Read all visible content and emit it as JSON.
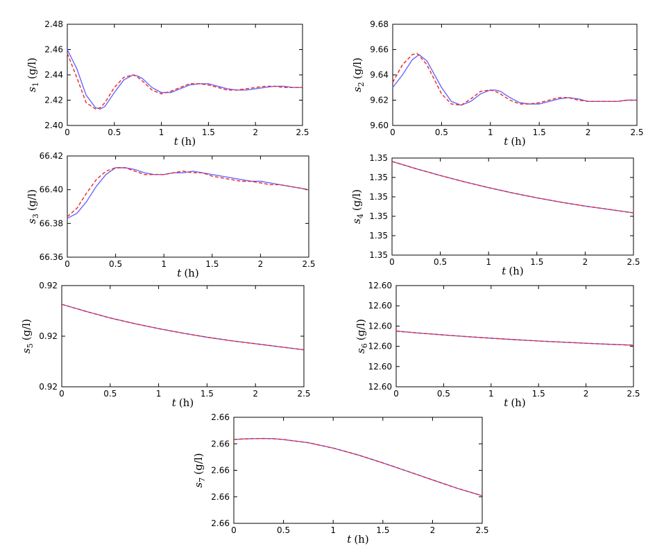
{
  "colors": {
    "series_a": "#6666ff",
    "series_b": "#ee2222"
  },
  "chart_data": [
    {
      "type": "line",
      "ylabel": "s1 (g/l)",
      "ylabel_var": "s",
      "ylabel_sub": "1",
      "ylabel_unit": "(g/l)",
      "xlabel": "t (h)",
      "xlim": [
        0,
        2.5
      ],
      "ylim": [
        2.4,
        2.48
      ],
      "xticks": [
        "0",
        "0.5",
        "1",
        "1.5",
        "2",
        "2.5"
      ],
      "yticks": [
        "2.40",
        "2.42",
        "2.44",
        "2.46",
        "2.48"
      ],
      "series": [
        {
          "style": "solid",
          "color": "#6666ff",
          "x": [
            0,
            0.1,
            0.2,
            0.3,
            0.35,
            0.4,
            0.5,
            0.6,
            0.7,
            0.75,
            0.8,
            0.9,
            1.0,
            1.1,
            1.2,
            1.3,
            1.4,
            1.5,
            1.6,
            1.7,
            1.8,
            1.9,
            2.0,
            2.1,
            2.2,
            2.3,
            2.4,
            2.5
          ],
          "y": [
            2.46,
            2.445,
            2.424,
            2.414,
            2.413,
            2.415,
            2.426,
            2.436,
            2.44,
            2.439,
            2.437,
            2.43,
            2.426,
            2.426,
            2.429,
            2.432,
            2.433,
            2.433,
            2.431,
            2.429,
            2.428,
            2.428,
            2.429,
            2.43,
            2.431,
            2.431,
            2.43,
            2.43
          ]
        },
        {
          "style": "dashed",
          "color": "#ee2222",
          "x": [
            0,
            0.1,
            0.2,
            0.3,
            0.35,
            0.4,
            0.5,
            0.6,
            0.7,
            0.75,
            0.8,
            0.9,
            1.0,
            1.1,
            1.2,
            1.3,
            1.4,
            1.5,
            1.6,
            1.7,
            1.8,
            1.9,
            2.0,
            2.1,
            2.2,
            2.3,
            2.4,
            2.5
          ],
          "y": [
            2.457,
            2.438,
            2.418,
            2.413,
            2.414,
            2.418,
            2.43,
            2.438,
            2.44,
            2.438,
            2.435,
            2.428,
            2.425,
            2.427,
            2.43,
            2.433,
            2.433,
            2.432,
            2.43,
            2.428,
            2.428,
            2.429,
            2.43,
            2.431,
            2.431,
            2.43,
            2.43,
            2.43
          ]
        }
      ]
    },
    {
      "type": "line",
      "ylabel": "s2 (g/l)",
      "ylabel_var": "s",
      "ylabel_sub": "2",
      "ylabel_unit": "(g/l)",
      "xlabel": "t (h)",
      "xlim": [
        0,
        2.5
      ],
      "ylim": [
        9.6,
        9.68
      ],
      "xticks": [
        "0",
        "0.5",
        "1",
        "1.5",
        "2",
        "2.5"
      ],
      "yticks": [
        "9.60",
        "9.62",
        "9.64",
        "9.66",
        "9.68"
      ],
      "series": [
        {
          "style": "solid",
          "color": "#6666ff",
          "x": [
            0,
            0.1,
            0.2,
            0.27,
            0.35,
            0.5,
            0.6,
            0.7,
            0.8,
            0.9,
            1.0,
            1.05,
            1.1,
            1.2,
            1.3,
            1.4,
            1.5,
            1.6,
            1.7,
            1.8,
            1.9,
            2.0,
            2.1,
            2.2,
            2.3,
            2.4,
            2.5
          ],
          "y": [
            9.63,
            9.64,
            9.652,
            9.656,
            9.651,
            9.63,
            9.619,
            9.616,
            9.619,
            9.625,
            9.628,
            9.628,
            9.627,
            9.622,
            9.618,
            9.617,
            9.617,
            9.619,
            9.621,
            9.622,
            9.621,
            9.619,
            9.619,
            9.619,
            9.619,
            9.62,
            9.62
          ]
        },
        {
          "style": "dashed",
          "color": "#ee2222",
          "x": [
            0,
            0.1,
            0.2,
            0.25,
            0.35,
            0.5,
            0.6,
            0.7,
            0.8,
            0.9,
            1.0,
            1.05,
            1.1,
            1.2,
            1.3,
            1.4,
            1.5,
            1.6,
            1.7,
            1.8,
            1.9,
            2.0,
            2.1,
            2.2,
            2.3,
            2.4,
            2.5
          ],
          "y": [
            9.634,
            9.648,
            9.656,
            9.657,
            9.648,
            9.625,
            9.617,
            9.616,
            9.621,
            9.627,
            9.628,
            9.627,
            9.625,
            9.62,
            9.617,
            9.617,
            9.618,
            9.62,
            9.622,
            9.622,
            9.62,
            9.619,
            9.619,
            9.619,
            9.619,
            9.62,
            9.62
          ]
        }
      ]
    },
    {
      "type": "line",
      "ylabel": "s3 (g/l)",
      "ylabel_var": "s",
      "ylabel_sub": "3",
      "ylabel_unit": "(g/l)",
      "xlabel": "t (h)",
      "xlim": [
        0,
        2.5
      ],
      "ylim": [
        66.36,
        66.42
      ],
      "xticks": [
        "0",
        "0.5",
        "1",
        "1.5",
        "2",
        "2.5"
      ],
      "yticks": [
        "66.36",
        "66.38",
        "66.40",
        "66.42"
      ],
      "series": [
        {
          "style": "solid",
          "color": "#6666ff",
          "x": [
            0,
            0.1,
            0.2,
            0.3,
            0.4,
            0.5,
            0.6,
            0.7,
            0.8,
            0.9,
            1.0,
            1.1,
            1.2,
            1.3,
            1.4,
            1.5,
            1.6,
            1.7,
            1.8,
            1.9,
            2.0,
            2.1,
            2.2,
            2.3,
            2.4,
            2.5
          ],
          "y": [
            66.383,
            66.386,
            66.393,
            66.402,
            66.409,
            66.413,
            66.413,
            66.412,
            66.41,
            66.409,
            66.409,
            66.41,
            66.41,
            66.411,
            66.41,
            66.409,
            66.408,
            66.407,
            66.406,
            66.405,
            66.405,
            66.404,
            66.403,
            66.402,
            66.401,
            66.4
          ]
        },
        {
          "style": "dashed",
          "color": "#ee2222",
          "x": [
            0,
            0.1,
            0.2,
            0.3,
            0.4,
            0.5,
            0.6,
            0.7,
            0.8,
            0.9,
            1.0,
            1.1,
            1.2,
            1.3,
            1.4,
            1.5,
            1.6,
            1.7,
            1.8,
            1.9,
            2.0,
            2.1,
            2.2,
            2.3,
            2.4,
            2.5
          ],
          "y": [
            66.384,
            66.389,
            66.398,
            66.406,
            66.411,
            66.413,
            66.413,
            66.411,
            66.409,
            66.409,
            66.409,
            66.41,
            66.411,
            66.41,
            66.41,
            66.408,
            66.407,
            66.406,
            66.405,
            66.405,
            66.404,
            66.403,
            66.403,
            66.402,
            66.401,
            66.4
          ]
        }
      ]
    },
    {
      "type": "line",
      "ylabel": "s4 (g/l)",
      "ylabel_var": "s",
      "ylabel_sub": "4",
      "ylabel_unit": "(g/l)",
      "xlabel": "t (h)",
      "xlim": [
        0,
        2.5
      ],
      "ylim": [
        0,
        1
      ],
      "xticks": [
        "0",
        "0.5",
        "1",
        "1.5",
        "2",
        "2.5"
      ],
      "yticks": [
        "1.35",
        "1.35",
        "1.35",
        "1.35",
        "1.35",
        "1.35"
      ],
      "series": [
        {
          "style": "solid",
          "color": "#6666ff",
          "x": [
            0,
            0.25,
            0.5,
            0.75,
            1.0,
            1.25,
            1.5,
            1.75,
            2.0,
            2.25,
            2.5
          ],
          "y": [
            0.965,
            0.89,
            0.82,
            0.755,
            0.695,
            0.64,
            0.59,
            0.545,
            0.505,
            0.47,
            0.435
          ]
        },
        {
          "style": "dashed",
          "color": "#ee2222",
          "x": [
            0,
            0.25,
            0.5,
            0.75,
            1.0,
            1.25,
            1.5,
            1.75,
            2.0,
            2.25,
            2.5
          ],
          "y": [
            0.965,
            0.89,
            0.82,
            0.755,
            0.695,
            0.64,
            0.59,
            0.545,
            0.505,
            0.47,
            0.435
          ]
        }
      ]
    },
    {
      "type": "line",
      "ylabel": "s5 (g/l)",
      "ylabel_var": "s",
      "ylabel_sub": "5",
      "ylabel_unit": "(g/l)",
      "xlabel": "t (h)",
      "xlim": [
        0,
        2.5
      ],
      "ylim": [
        0,
        1
      ],
      "xticks": [
        "0",
        "0.5",
        "1",
        "1.5",
        "2",
        "2.5"
      ],
      "yticks": [
        "0.92",
        "0.92",
        "0.92"
      ],
      "series": [
        {
          "style": "solid",
          "color": "#6666ff",
          "x": [
            0,
            0.25,
            0.5,
            0.75,
            1.0,
            1.25,
            1.5,
            1.75,
            2.0,
            2.25,
            2.5
          ],
          "y": [
            0.815,
            0.745,
            0.68,
            0.625,
            0.575,
            0.53,
            0.49,
            0.455,
            0.425,
            0.395,
            0.365
          ]
        },
        {
          "style": "dashed",
          "color": "#ee2222",
          "x": [
            0,
            0.25,
            0.5,
            0.75,
            1.0,
            1.25,
            1.5,
            1.75,
            2.0,
            2.25,
            2.5
          ],
          "y": [
            0.815,
            0.745,
            0.68,
            0.625,
            0.575,
            0.53,
            0.49,
            0.455,
            0.425,
            0.395,
            0.365
          ]
        }
      ]
    },
    {
      "type": "line",
      "ylabel": "s6 (g/l)",
      "ylabel_var": "s",
      "ylabel_sub": "6",
      "ylabel_unit": "(g/l)",
      "xlabel": "t (h)",
      "xlim": [
        0,
        2.5
      ],
      "ylim": [
        0,
        1
      ],
      "xticks": [
        "0",
        "0.5",
        "1",
        "1.5",
        "2",
        "2.5"
      ],
      "yticks": [
        "12.60",
        "12.60",
        "12.60",
        "12.60",
        "12.60",
        "12.60"
      ],
      "series": [
        {
          "style": "solid",
          "color": "#6666ff",
          "x": [
            0,
            0.25,
            0.5,
            0.75,
            1.0,
            1.25,
            1.5,
            1.75,
            2.0,
            2.25,
            2.5
          ],
          "y": [
            0.55,
            0.53,
            0.512,
            0.495,
            0.48,
            0.466,
            0.453,
            0.441,
            0.43,
            0.42,
            0.411
          ]
        },
        {
          "style": "dashed",
          "color": "#ee2222",
          "x": [
            0,
            0.25,
            0.5,
            0.75,
            1.0,
            1.25,
            1.5,
            1.75,
            2.0,
            2.25,
            2.5
          ],
          "y": [
            0.55,
            0.53,
            0.512,
            0.495,
            0.48,
            0.466,
            0.453,
            0.441,
            0.43,
            0.42,
            0.411
          ]
        }
      ]
    },
    {
      "type": "line",
      "ylabel": "s7 (g/l)",
      "ylabel_var": "s",
      "ylabel_sub": "7",
      "ylabel_unit": "(g/l)",
      "xlabel": "t (h)",
      "xlim": [
        0,
        2.5
      ],
      "ylim": [
        0,
        1
      ],
      "xticks": [
        "0",
        "0.5",
        "1",
        "1.5",
        "2",
        "2.5"
      ],
      "yticks": [
        "2.66",
        "2.66",
        "2.66",
        "2.66",
        "2.66"
      ],
      "series": [
        {
          "style": "solid",
          "color": "#6666ff",
          "x": [
            0,
            0.1,
            0.2,
            0.3,
            0.4,
            0.5,
            0.75,
            1.0,
            1.25,
            1.5,
            1.75,
            2.0,
            2.25,
            2.5
          ],
          "y": [
            0.79,
            0.796,
            0.799,
            0.8,
            0.798,
            0.79,
            0.76,
            0.71,
            0.645,
            0.57,
            0.49,
            0.41,
            0.33,
            0.26
          ]
        },
        {
          "style": "dashed",
          "color": "#ee2222",
          "x": [
            0,
            0.1,
            0.2,
            0.3,
            0.4,
            0.5,
            0.75,
            1.0,
            1.25,
            1.5,
            1.75,
            2.0,
            2.25,
            2.5
          ],
          "y": [
            0.79,
            0.796,
            0.799,
            0.8,
            0.798,
            0.79,
            0.76,
            0.71,
            0.645,
            0.57,
            0.49,
            0.41,
            0.33,
            0.26
          ]
        }
      ]
    }
  ]
}
